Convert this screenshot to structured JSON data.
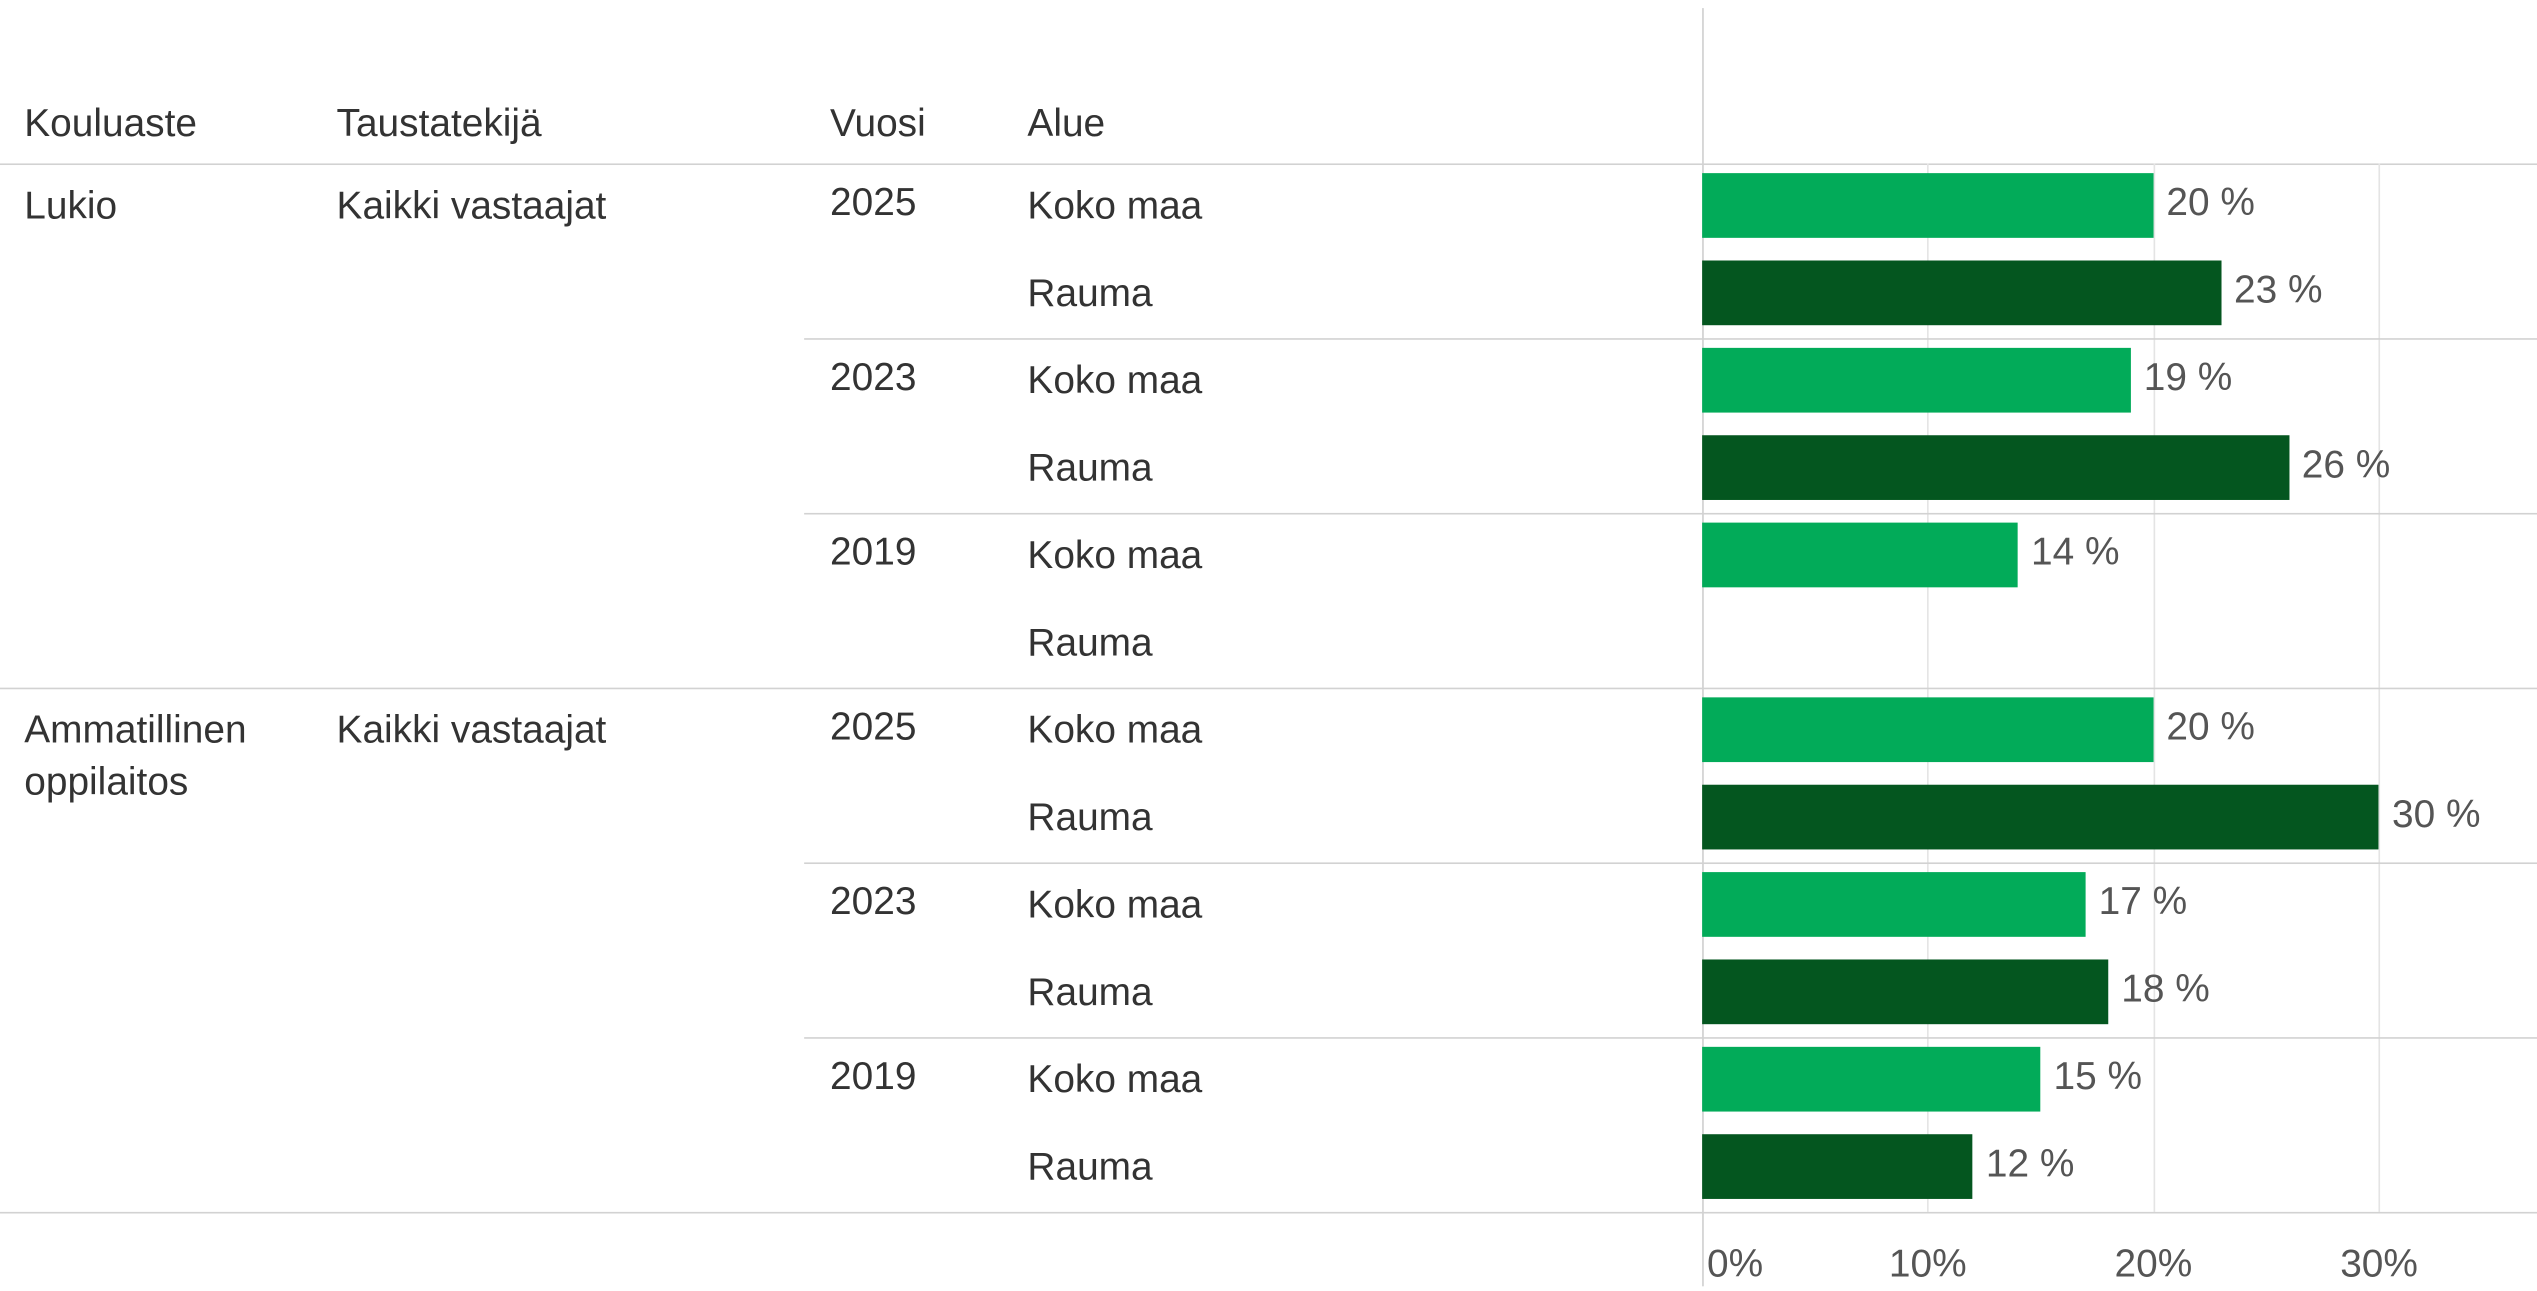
{
  "chart_data": {
    "type": "bar",
    "columns": [
      "Kouluaste",
      "Taustatekijä",
      "Vuosi",
      "Alue"
    ],
    "groups": [
      {
        "kouluaste": "Lukio",
        "taustatekija": "Kaikki vastaajat",
        "years": [
          {
            "vuosi": "2025",
            "areas": [
              "Koko maa",
              "Rauma"
            ],
            "values": [
              20,
              23
            ],
            "value_labels": [
              "20 %",
              "23 %"
            ]
          },
          {
            "vuosi": "2023",
            "areas": [
              "Koko maa",
              "Rauma"
            ],
            "values": [
              19,
              26
            ],
            "value_labels": [
              "19 %",
              "26 %"
            ]
          },
          {
            "vuosi": "2019",
            "areas": [
              "Koko maa",
              "Rauma"
            ],
            "values": [
              14,
              null
            ],
            "value_labels": [
              "14 %",
              null
            ]
          }
        ]
      },
      {
        "kouluaste": "Ammatillinen oppilaitos",
        "taustatekija": "Kaikki vastaajat",
        "years": [
          {
            "vuosi": "2025",
            "areas": [
              "Koko maa",
              "Rauma"
            ],
            "values": [
              20,
              30
            ],
            "value_labels": [
              "20 %",
              "30 %"
            ]
          },
          {
            "vuosi": "2023",
            "areas": [
              "Koko maa",
              "Rauma"
            ],
            "values": [
              17,
              18
            ],
            "value_labels": [
              "17 %",
              "18 %"
            ]
          },
          {
            "vuosi": "2019",
            "areas": [
              "Koko maa",
              "Rauma"
            ],
            "values": [
              15,
              12
            ],
            "value_labels": [
              "15 %",
              "12 %"
            ]
          }
        ]
      }
    ],
    "area_colors": [
      "#02ab59",
      "#04561f"
    ],
    "xlim": [
      0,
      37
    ],
    "xticks": [
      {
        "value": 0,
        "label": "0%"
      },
      {
        "value": 10,
        "label": "10%"
      },
      {
        "value": 20,
        "label": "20%"
      },
      {
        "value": 30,
        "label": "30%"
      }
    ],
    "grid": true
  }
}
